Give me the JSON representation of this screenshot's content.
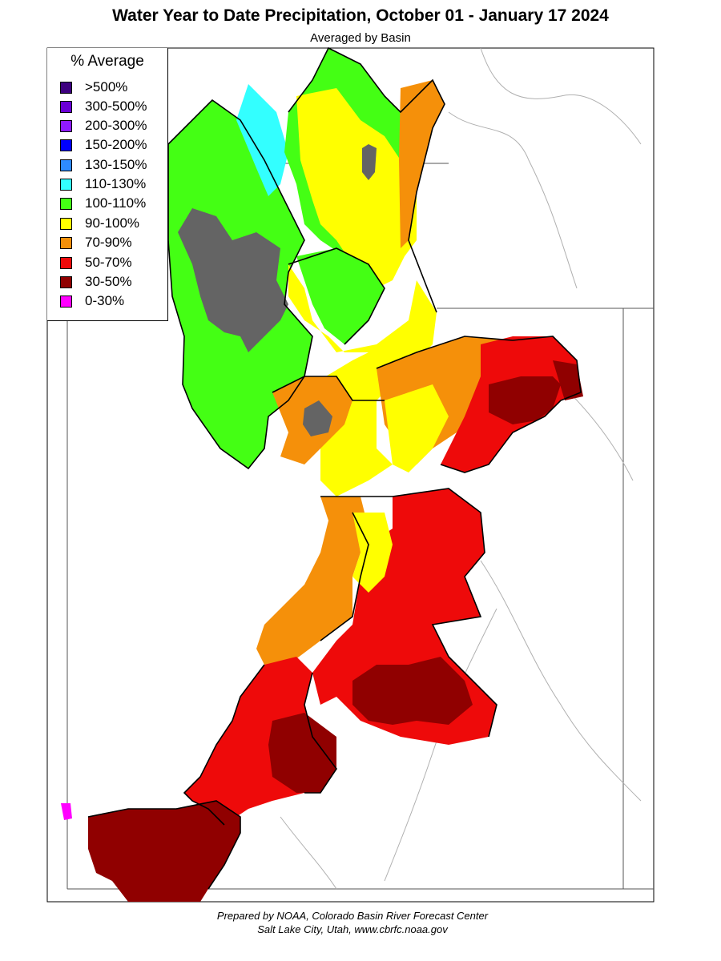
{
  "title": "Water Year to Date Precipitation, October 01  - January 17 2024",
  "subtitle": "Averaged by Basin",
  "legend": {
    "title": "% Average",
    "items": [
      {
        "label": ">500%",
        "color": "#3d007f"
      },
      {
        "label": "300-500%",
        "color": "#6a00d6"
      },
      {
        "label": "200-300%",
        "color": "#8f1aff"
      },
      {
        "label": "150-200%",
        "color": "#0000ff"
      },
      {
        "label": "130-150%",
        "color": "#2e8bff"
      },
      {
        "label": "110-130%",
        "color": "#33ffff"
      },
      {
        "label": "100-110%",
        "color": "#44ff14"
      },
      {
        "label": "90-100%",
        "color": "#ffff00"
      },
      {
        "label": "70-90%",
        "color": "#f5900a"
      },
      {
        "label": "50-70%",
        "color": "#ee0a0a"
      },
      {
        "label": "30-50%",
        "color": "#900000"
      },
      {
        "label": "0-30%",
        "color": "#ff00ff"
      }
    ]
  },
  "colors": {
    "no_data": "#646464",
    "boundary": "#000000",
    "rivers": "#a8a8a8"
  },
  "footer": {
    "line1": "Prepared by NOAA, Colorado Basin River Forecast Center",
    "line2": "Salt Lake City, Utah, www.cbrfc.noaa.gov"
  }
}
